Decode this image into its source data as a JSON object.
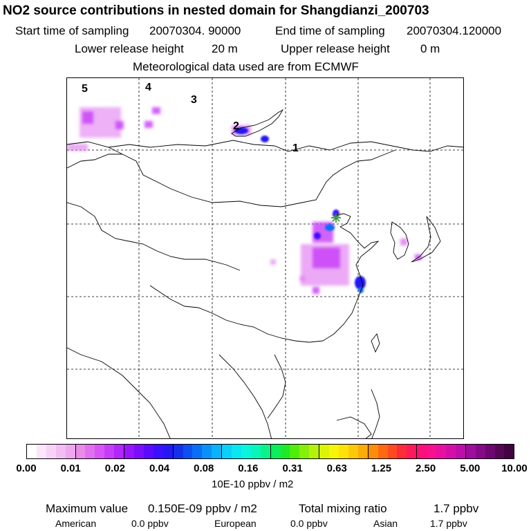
{
  "title": "NO2 source contributions in nested domain for Shangdianzi_200703",
  "sampling": {
    "start_label": "Start time of sampling",
    "start_value": "20070304. 90000",
    "end_label": "End time of sampling",
    "end_value": "20070304.120000"
  },
  "release": {
    "lower_label": "Lower release height",
    "lower_value": "20 m",
    "upper_label": "Upper release height",
    "upper_value": "0 m"
  },
  "meteo_text": "Meteorological data used are from ECMWF",
  "map": {
    "region_labels": [
      "5",
      "4",
      "3",
      "2",
      "1"
    ],
    "station_marker": "Shangdianzi station (star)"
  },
  "colorbar": {
    "tick_labels": [
      "0.00",
      "0.01",
      "0.02",
      "0.04",
      "0.08",
      "0.16",
      "0.31",
      "0.63",
      "1.25",
      "2.50",
      "5.00",
      "10.00"
    ],
    "colors": [
      "#ffffff",
      "#fbe6fb",
      "#f7d2f7",
      "#f2bdf2",
      "#eea6ee",
      "#e88ce8",
      "#e070f0",
      "#d755f5",
      "#c73cf8",
      "#b026fb",
      "#9515fd",
      "#7a0efd",
      "#5a0aff",
      "#3c0fff",
      "#2418f5",
      "#1530ea",
      "#0d4ff0",
      "#0a6ef5",
      "#0a90f8",
      "#0ab2fa",
      "#0ad0fa",
      "#0ae6f0",
      "#0af5dc",
      "#0af5b8",
      "#0af28a",
      "#0aee5a",
      "#1eea28",
      "#50ec0a",
      "#85ef0a",
      "#b5f10a",
      "#dcf40a",
      "#f7f40a",
      "#fde20a",
      "#fdc80a",
      "#fdab0a",
      "#fd8c0a",
      "#fd6a10",
      "#fd4a20",
      "#fd2c3a",
      "#fd1a5a",
      "#fd107a",
      "#f8108e",
      "#e810a0",
      "#d40fa8",
      "#bc0ea8",
      "#a00c9c",
      "#850a88",
      "#6c0870",
      "#560656",
      "#420440"
    ],
    "unit": "10E-10 ppbv / m2"
  },
  "stats": {
    "max_label": "Maximum value",
    "max_value": "0.150E-09 ppbv / m2",
    "total_label": "Total mixing ratio",
    "total_value": "1.7 ppbv",
    "american_label": "American",
    "american_value": "0.0 ppbv",
    "european_label": "European",
    "european_value": "0.0 ppbv",
    "asian_label": "Asian",
    "asian_value": "1.7 ppbv"
  }
}
